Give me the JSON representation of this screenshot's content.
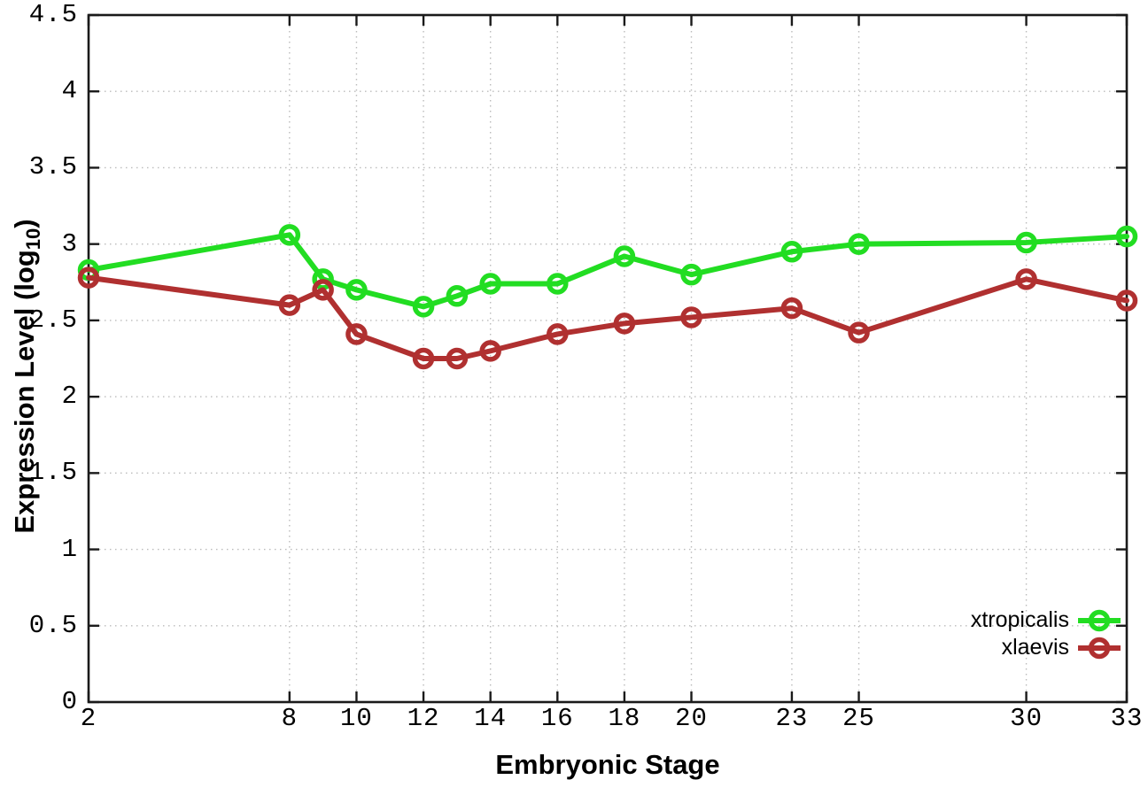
{
  "chart_data": {
    "type": "line",
    "title": "",
    "xlabel": "Embryonic Stage",
    "ylabel": "Expression Level (log10)",
    "ylabel_parts": {
      "main": "Expression Level (log",
      "sub": "10",
      "close": ")"
    },
    "xlim": [
      2,
      33
    ],
    "ylim": [
      0,
      4.5
    ],
    "x_ticks": [
      2,
      8,
      10,
      12,
      14,
      16,
      18,
      20,
      23,
      25,
      30,
      33
    ],
    "y_ticks": [
      0,
      0.5,
      1,
      1.5,
      2,
      2.5,
      3,
      3.5,
      4,
      4.5
    ],
    "grid": true,
    "legend_position": "inside bottom-right",
    "x": [
      2,
      8,
      9,
      10,
      12,
      13,
      14,
      16,
      18,
      20,
      23,
      25,
      30,
      33
    ],
    "series": [
      {
        "name": "xtropicalis",
        "color": "#22dd22",
        "values": [
          2.83,
          3.06,
          2.77,
          2.7,
          2.59,
          2.66,
          2.74,
          2.74,
          2.92,
          2.8,
          2.95,
          3.0,
          3.01,
          3.05
        ]
      },
      {
        "name": "xlaevis",
        "color": "#b03030",
        "values": [
          2.78,
          2.6,
          2.7,
          2.41,
          2.25,
          2.25,
          2.3,
          2.41,
          2.48,
          2.52,
          2.58,
          2.42,
          2.77,
          2.63
        ]
      }
    ]
  },
  "colors": {
    "grid": "#bbbbbb",
    "axis": "#1a1a1a",
    "text": "#000000"
  }
}
